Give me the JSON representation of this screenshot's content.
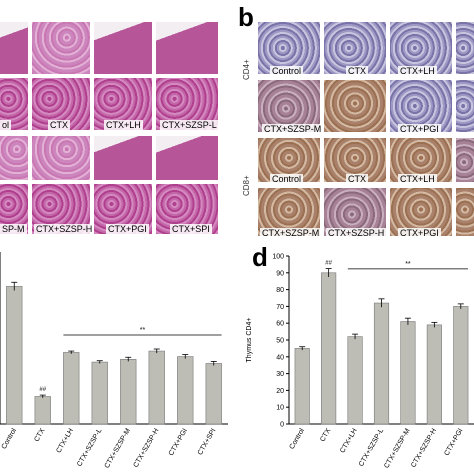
{
  "panels": {
    "b": "b",
    "d": "d"
  },
  "panel_a": {
    "row1_labels": [
      "ol",
      "CTX",
      "CTX+LH",
      "CTX+SZSP-L"
    ],
    "row2_labels": [
      "SP-M",
      "CTX+SZSP-H",
      "CTX+PGI",
      "CTX+SPI"
    ]
  },
  "panel_b": {
    "cd4_label": "CD4+",
    "cd8_label": "CD8+",
    "row1_labels": [
      "Control",
      "CTX",
      "CTX+LH"
    ],
    "row2_labels": [
      "CTX+SZSP-M",
      "CTX+PGI"
    ],
    "row3_labels": [
      "Control",
      "CTX",
      "CTX+LH"
    ],
    "row4_labels": [
      "CTX+SZSP-M",
      "CTX+SZSP-H",
      "CTX+PGI"
    ]
  },
  "chart_data": [
    {
      "type": "bar",
      "panel": "c",
      "title": "",
      "xlabel": "",
      "ylabel": "",
      "categories": [
        "Control",
        "CTX",
        "CTX+LH",
        "CTX+SZSP-L",
        "CTX+SZSP-M",
        "CTX+SZSP-H",
        "CTX+PGI",
        "CTX+SPI"
      ],
      "values": [
        1.0,
        0.2,
        0.52,
        0.45,
        0.47,
        0.53,
        0.49,
        0.44
      ],
      "errors": [
        0.03,
        0.01,
        0.01,
        0.01,
        0.015,
        0.015,
        0.015,
        0.015
      ],
      "ylim": [
        0,
        1.25
      ],
      "annotations": [
        {
          "category": "CTX",
          "text": "##"
        },
        {
          "text": "**"
        }
      ],
      "bar_color": "#bdbdb6"
    },
    {
      "type": "bar",
      "panel": "d",
      "title": "",
      "xlabel": "",
      "ylabel": "Thymus CD4+",
      "categories": [
        "Control",
        "CTX",
        "CTX+LH",
        "CTX+SZSP-L",
        "CTX+SZSP-M",
        "CTX+SZSP-H",
        "CTX+PGI"
      ],
      "values": [
        45,
        90,
        52,
        72,
        61,
        59,
        70
      ],
      "errors": [
        1,
        2.5,
        1.5,
        2.5,
        2,
        1.5,
        1.5
      ],
      "ylim": [
        0,
        100
      ],
      "yticks": [
        0,
        10,
        20,
        30,
        40,
        50,
        60,
        70,
        80,
        90,
        100
      ],
      "annotations": [
        {
          "category": "CTX",
          "text": "##"
        },
        {
          "text": "**"
        }
      ],
      "bar_color": "#bdbdb6"
    }
  ]
}
